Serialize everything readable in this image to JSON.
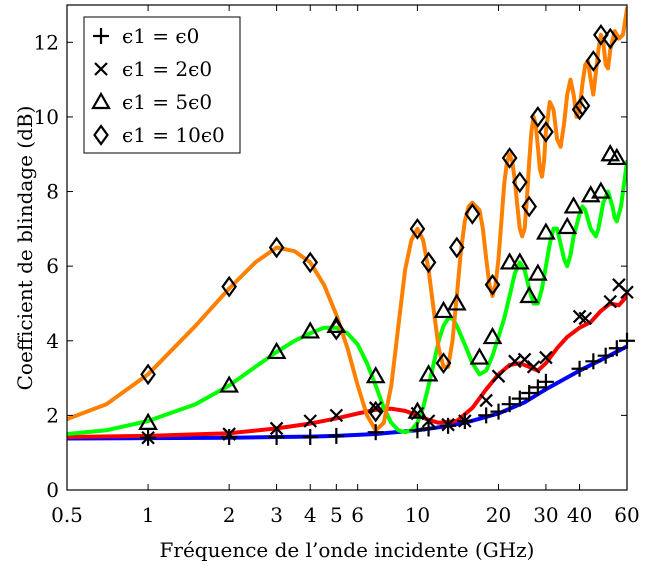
{
  "chart_data": {
    "type": "line",
    "xlabel": "Fréquence de l’onde incidente (GHz)",
    "ylabel": "Coefficient de blindage (dB)",
    "xscale": "log",
    "xlim": [
      0.5,
      60
    ],
    "ylim": [
      0,
      13
    ],
    "x_ticks": [
      0.5,
      1,
      2,
      3,
      4,
      5,
      6,
      10,
      20,
      30,
      40,
      60
    ],
    "x_tick_labels": [
      "0.5",
      "1",
      "2",
      "3",
      "4",
      "5",
      "6",
      "10",
      "20",
      "30",
      "40",
      "60"
    ],
    "y_ticks": [
      0,
      2,
      4,
      6,
      8,
      10,
      12
    ],
    "y_tick_labels": [
      "0",
      "2",
      "4",
      "6",
      "8",
      "10",
      "12"
    ],
    "grid": false,
    "legend_position": "top-left",
    "series": [
      {
        "name": "ϵ1 = ϵ0",
        "marker": "plus",
        "color": "#0000ff",
        "line": [
          [
            0.5,
            1.38
          ],
          [
            1,
            1.39
          ],
          [
            2,
            1.4
          ],
          [
            3,
            1.42
          ],
          [
            4,
            1.43
          ],
          [
            5,
            1.45
          ],
          [
            7,
            1.5
          ],
          [
            10,
            1.6
          ],
          [
            12,
            1.68
          ],
          [
            15,
            1.8
          ],
          [
            20,
            2.05
          ],
          [
            25,
            2.35
          ],
          [
            30,
            2.7
          ],
          [
            40,
            3.2
          ],
          [
            50,
            3.55
          ],
          [
            60,
            3.85
          ]
        ],
        "markers": [
          [
            1,
            1.4
          ],
          [
            2,
            1.42
          ],
          [
            3,
            1.42
          ],
          [
            4,
            1.42
          ],
          [
            5,
            1.45
          ],
          [
            7,
            1.55
          ],
          [
            10,
            1.6
          ],
          [
            11,
            1.65
          ],
          [
            13,
            1.72
          ],
          [
            15,
            1.85
          ],
          [
            18,
            2.0
          ],
          [
            20,
            2.1
          ],
          [
            22,
            2.3
          ],
          [
            24,
            2.45
          ],
          [
            26,
            2.6
          ],
          [
            28,
            2.75
          ],
          [
            30,
            2.9
          ],
          [
            40,
            3.25
          ],
          [
            45,
            3.45
          ],
          [
            50,
            3.6
          ],
          [
            55,
            3.8
          ],
          [
            60,
            4.0
          ]
        ]
      },
      {
        "name": "ϵ1 = 2ϵ0",
        "marker": "cross",
        "color": "#ff0000",
        "line": [
          [
            0.5,
            1.42
          ],
          [
            1,
            1.45
          ],
          [
            2,
            1.52
          ],
          [
            3,
            1.65
          ],
          [
            4,
            1.78
          ],
          [
            5,
            1.92
          ],
          [
            6,
            2.05
          ],
          [
            7,
            2.15
          ],
          [
            8,
            2.18
          ],
          [
            9,
            2.12
          ],
          [
            10,
            2.0
          ],
          [
            11,
            1.88
          ],
          [
            12,
            1.8
          ],
          [
            14,
            1.85
          ],
          [
            16,
            2.2
          ],
          [
            18,
            2.7
          ],
          [
            20,
            3.1
          ],
          [
            22,
            3.35
          ],
          [
            24,
            3.4
          ],
          [
            26,
            3.3
          ],
          [
            28,
            3.2
          ],
          [
            30,
            3.4
          ],
          [
            33,
            3.8
          ],
          [
            36,
            4.1
          ],
          [
            40,
            4.35
          ],
          [
            44,
            4.5
          ],
          [
            48,
            4.8
          ],
          [
            52,
            5.0
          ],
          [
            56,
            4.95
          ],
          [
            60,
            5.2
          ]
        ],
        "markers": [
          [
            1,
            1.4
          ],
          [
            2,
            1.5
          ],
          [
            3,
            1.65
          ],
          [
            4,
            1.85
          ],
          [
            5,
            2.0
          ],
          [
            7,
            2.2
          ],
          [
            10,
            2.05
          ],
          [
            11,
            1.85
          ],
          [
            13,
            1.75
          ],
          [
            15,
            1.85
          ],
          [
            18,
            2.4
          ],
          [
            20,
            3.05
          ],
          [
            23,
            3.45
          ],
          [
            25,
            3.5
          ],
          [
            27,
            3.3
          ],
          [
            30,
            3.55
          ],
          [
            40,
            4.65
          ],
          [
            42,
            4.6
          ],
          [
            52,
            5.05
          ],
          [
            56,
            5.5
          ],
          [
            60,
            5.3
          ]
        ]
      },
      {
        "name": "ϵ1 = 5ϵ0",
        "marker": "triangle",
        "color": "#00ff00",
        "line": [
          [
            0.5,
            1.5
          ],
          [
            0.7,
            1.6
          ],
          [
            1,
            1.85
          ],
          [
            1.5,
            2.3
          ],
          [
            2,
            2.8
          ],
          [
            2.5,
            3.3
          ],
          [
            3,
            3.7
          ],
          [
            3.5,
            4.0
          ],
          [
            4,
            4.2
          ],
          [
            4.5,
            4.35
          ],
          [
            5,
            4.35
          ],
          [
            5.5,
            4.2
          ],
          [
            6,
            3.9
          ],
          [
            6.5,
            3.4
          ],
          [
            7,
            2.8
          ],
          [
            7.5,
            2.2
          ],
          [
            8,
            1.8
          ],
          [
            8.5,
            1.6
          ],
          [
            9,
            1.55
          ],
          [
            9.5,
            1.6
          ],
          [
            10,
            1.8
          ],
          [
            10.5,
            2.2
          ],
          [
            11,
            2.8
          ],
          [
            11.5,
            3.4
          ],
          [
            12,
            4.0
          ],
          [
            12.5,
            4.4
          ],
          [
            13,
            4.6
          ],
          [
            13.5,
            4.6
          ],
          [
            14,
            4.4
          ],
          [
            15,
            3.9
          ],
          [
            16,
            3.4
          ],
          [
            17,
            3.1
          ],
          [
            18,
            3.2
          ],
          [
            19,
            3.6
          ],
          [
            20,
            4.1
          ],
          [
            21,
            4.6
          ],
          [
            22,
            5.2
          ],
          [
            23,
            5.8
          ],
          [
            24,
            6.1
          ],
          [
            25,
            5.9
          ],
          [
            26,
            5.4
          ],
          [
            27,
            5.0
          ],
          [
            28,
            5.0
          ],
          [
            29,
            5.4
          ],
          [
            30,
            6.0
          ],
          [
            31,
            6.6
          ],
          [
            32,
            7.0
          ],
          [
            33,
            7.0
          ],
          [
            34,
            6.6
          ],
          [
            35,
            6.2
          ],
          [
            36,
            6.0
          ],
          [
            37,
            6.3
          ],
          [
            38,
            6.8
          ],
          [
            40,
            7.4
          ],
          [
            41,
            7.6
          ],
          [
            42,
            7.5
          ],
          [
            44,
            7.0
          ],
          [
            46,
            6.8
          ],
          [
            47,
            7.0
          ],
          [
            49,
            7.7
          ],
          [
            51,
            8.0
          ],
          [
            53,
            7.6
          ],
          [
            54,
            7.3
          ],
          [
            55,
            7.2
          ],
          [
            57,
            7.6
          ],
          [
            59,
            8.4
          ],
          [
            60,
            8.8
          ]
        ],
        "markers": [
          [
            1,
            1.8
          ],
          [
            2,
            2.8
          ],
          [
            3,
            3.7
          ],
          [
            4,
            4.25
          ],
          [
            5,
            4.4
          ],
          [
            7,
            3.05
          ],
          [
            10,
            2.1
          ],
          [
            11,
            3.1
          ],
          [
            12.5,
            4.8
          ],
          [
            14,
            5.0
          ],
          [
            17,
            3.55
          ],
          [
            19,
            4.1
          ],
          [
            22,
            6.1
          ],
          [
            24,
            6.1
          ],
          [
            26,
            5.2
          ],
          [
            28,
            5.8
          ],
          [
            30,
            6.9
          ],
          [
            36,
            7.05
          ],
          [
            38,
            7.6
          ],
          [
            44,
            7.9
          ],
          [
            48,
            8.0
          ],
          [
            52,
            9.0
          ],
          [
            55,
            8.9
          ]
        ]
      },
      {
        "name": "ϵ1 = 10ϵ0",
        "marker": "diamond",
        "color": "#ff8000",
        "line": [
          [
            0.5,
            1.9
          ],
          [
            0.7,
            2.3
          ],
          [
            1,
            3.1
          ],
          [
            1.5,
            4.4
          ],
          [
            2,
            5.4
          ],
          [
            2.5,
            6.1
          ],
          [
            3,
            6.5
          ],
          [
            3.5,
            6.4
          ],
          [
            4,
            6.1
          ],
          [
            4.5,
            5.5
          ],
          [
            5,
            4.7
          ],
          [
            5.5,
            3.8
          ],
          [
            6,
            2.8
          ],
          [
            6.5,
            2.0
          ],
          [
            7,
            1.6
          ],
          [
            7.5,
            1.8
          ],
          [
            8,
            2.8
          ],
          [
            8.5,
            4.4
          ],
          [
            9,
            5.9
          ],
          [
            9.5,
            6.7
          ],
          [
            10,
            7.0
          ],
          [
            10.5,
            6.7
          ],
          [
            11,
            5.9
          ],
          [
            11.5,
            4.8
          ],
          [
            12,
            3.8
          ],
          [
            12.5,
            3.3
          ],
          [
            13,
            3.3
          ],
          [
            13.5,
            4.0
          ],
          [
            14,
            5.2
          ],
          [
            14.5,
            6.4
          ],
          [
            15,
            7.2
          ],
          [
            15.5,
            7.6
          ],
          [
            16,
            7.7
          ],
          [
            16.5,
            7.6
          ],
          [
            17,
            7.5
          ],
          [
            17.5,
            7.0
          ],
          [
            18,
            6.2
          ],
          [
            18.5,
            5.5
          ],
          [
            19,
            5.2
          ],
          [
            19.5,
            5.5
          ],
          [
            20,
            6.2
          ],
          [
            20.5,
            7.2
          ],
          [
            21,
            8.2
          ],
          [
            21.5,
            8.8
          ],
          [
            22,
            9.0
          ],
          [
            22.5,
            8.8
          ],
          [
            23,
            8.3
          ],
          [
            23.5,
            7.6
          ],
          [
            24,
            7.0
          ],
          [
            24.5,
            6.8
          ],
          [
            25,
            7.0
          ],
          [
            25.5,
            7.8
          ],
          [
            26,
            8.8
          ],
          [
            26.5,
            9.6
          ],
          [
            27,
            10.0
          ],
          [
            27.5,
            9.8
          ],
          [
            28,
            9.2
          ],
          [
            28.5,
            8.6
          ],
          [
            29,
            8.4
          ],
          [
            29.5,
            8.8
          ],
          [
            30,
            9.6
          ],
          [
            31,
            10.4
          ],
          [
            32,
            10.2
          ],
          [
            33,
            9.4
          ],
          [
            34,
            9.2
          ],
          [
            35,
            9.8
          ],
          [
            36,
            10.6
          ],
          [
            37,
            11.0
          ],
          [
            38,
            10.6
          ],
          [
            39,
            10.0
          ],
          [
            40,
            10.2
          ],
          [
            41,
            10.9
          ],
          [
            42,
            11.4
          ],
          [
            43,
            11.5
          ],
          [
            44,
            11.0
          ],
          [
            45,
            10.6
          ],
          [
            46,
            11.2
          ],
          [
            47,
            11.8
          ],
          [
            48,
            12.2
          ],
          [
            49,
            12.0
          ],
          [
            50,
            11.4
          ],
          [
            51,
            11.3
          ],
          [
            52,
            11.8
          ],
          [
            54,
            12.3
          ],
          [
            56,
            12.1
          ],
          [
            58,
            12.2
          ],
          [
            60,
            12.9
          ]
        ],
        "markers": [
          [
            1,
            3.1
          ],
          [
            2,
            5.45
          ],
          [
            3,
            6.5
          ],
          [
            4,
            6.1
          ],
          [
            5,
            4.3
          ],
          [
            7,
            2.1
          ],
          [
            10,
            7.0
          ],
          [
            11,
            6.1
          ],
          [
            12.5,
            3.4
          ],
          [
            14,
            6.5
          ],
          [
            16,
            7.4
          ],
          [
            19,
            5.5
          ],
          [
            22,
            8.9
          ],
          [
            24,
            8.25
          ],
          [
            26,
            7.6
          ],
          [
            28,
            10.0
          ],
          [
            30,
            9.6
          ],
          [
            40,
            10.2
          ],
          [
            41,
            10.3
          ],
          [
            45,
            11.5
          ],
          [
            48,
            12.2
          ],
          [
            52,
            12.1
          ]
        ]
      }
    ]
  }
}
